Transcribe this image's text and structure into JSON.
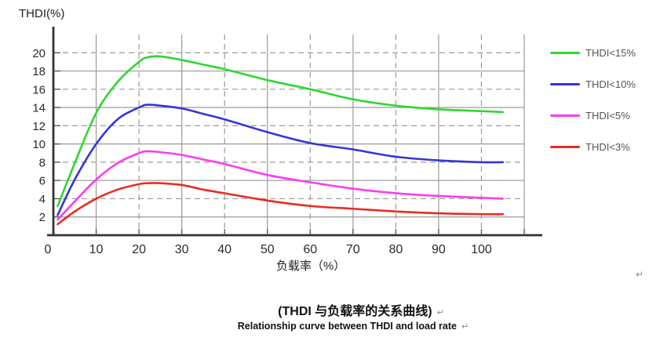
{
  "y_axis_title": "THDI(%)",
  "chart_data": {
    "type": "line",
    "title": "",
    "xlabel": "负载率（%）",
    "ylabel": "THDI(%)",
    "xlim": [
      0,
      110
    ],
    "ylim": [
      0,
      22
    ],
    "x_ticks": [
      0,
      10,
      20,
      30,
      40,
      50,
      60,
      70,
      80,
      90,
      100
    ],
    "y_ticks": [
      2,
      4,
      6,
      8,
      10,
      12,
      14,
      16,
      18,
      20
    ],
    "grid": {
      "y_solid": [
        2,
        6,
        10,
        14,
        18
      ],
      "y_dashed": [
        4,
        8,
        12,
        16,
        20
      ],
      "x_solid": [
        10,
        30,
        50,
        70,
        90,
        110
      ],
      "x_dashed": [
        20,
        40,
        60,
        80,
        100
      ]
    },
    "legend_position": "right",
    "x": [
      1,
      5,
      10,
      15,
      20,
      22,
      25,
      30,
      35,
      40,
      50,
      60,
      70,
      80,
      90,
      100,
      105
    ],
    "series": [
      {
        "name": "THDI<15%",
        "key": "thdi-lt-15",
        "color": "#2fd62f",
        "values": [
          3.2,
          7.9,
          13.4,
          16.8,
          19.0,
          19.5,
          19.6,
          19.2,
          18.7,
          18.2,
          17.0,
          16.0,
          14.9,
          14.2,
          13.8,
          13.6,
          13.5
        ]
      },
      {
        "name": "THDI<10%",
        "key": "thdi-lt-10",
        "color": "#3434d9",
        "values": [
          2.2,
          6.1,
          10.0,
          12.7,
          14.0,
          14.3,
          14.2,
          13.9,
          13.3,
          12.7,
          11.3,
          10.1,
          9.4,
          8.6,
          8.2,
          8.0,
          8.0
        ]
      },
      {
        "name": "THDI<5%",
        "key": "thdi-lt-5",
        "color": "#fb3cf4",
        "values": [
          1.7,
          3.7,
          6.1,
          7.9,
          9.0,
          9.2,
          9.1,
          8.8,
          8.3,
          7.8,
          6.6,
          5.8,
          5.1,
          4.6,
          4.3,
          4.1,
          4.0
        ]
      },
      {
        "name": "THDI<3%",
        "key": "thdi-lt-3",
        "color": "#e82c21",
        "values": [
          1.2,
          2.6,
          4.0,
          5.0,
          5.6,
          5.7,
          5.7,
          5.5,
          5.0,
          4.6,
          3.8,
          3.2,
          2.9,
          2.6,
          2.4,
          2.3,
          2.3
        ]
      }
    ]
  },
  "captions": {
    "chinese": "(THDI 与负载率的关系曲线)",
    "english": "Relationship curve between THDI and load rate"
  },
  "marks": {
    "return_symbol": "↵"
  },
  "colors": {
    "grid": "#9a9a9a",
    "axis": "#333333",
    "tick": "#555555",
    "tick_text": "#2b2b2b",
    "legend_text": "#555555"
  }
}
